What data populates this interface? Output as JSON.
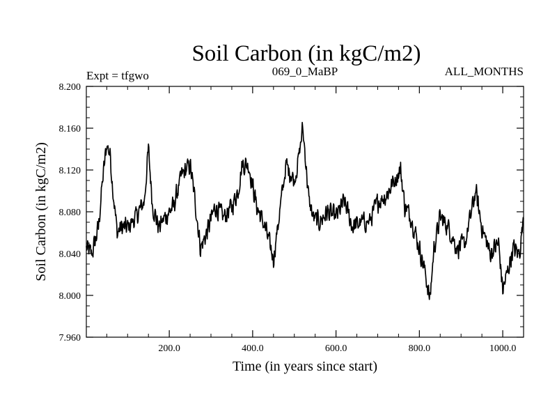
{
  "chart_data": {
    "type": "line",
    "title": "Soil Carbon (in kgC/m2)",
    "subtitle_left": "Expt = tfgwo",
    "subtitle_center": "069_0_MaBP",
    "subtitle_right": "ALL_MONTHS",
    "xlabel": "Time (in years since start)",
    "ylabel": "Soil Carbon (in kgC/m2)",
    "xlim": [
      1,
      1050
    ],
    "ylim": [
      7.96,
      8.2
    ],
    "x_ticks": [
      200,
      400,
      600,
      800,
      1000
    ],
    "x_tick_labels": [
      "200.0",
      "400.0",
      "600.0",
      "800.0",
      "1000.0"
    ],
    "x_minor_step": 50,
    "y_ticks": [
      7.96,
      8.0,
      8.04,
      8.08,
      8.12,
      8.16,
      8.2
    ],
    "y_tick_labels": [
      "7.960",
      "8.000",
      "8.040",
      "8.080",
      "8.120",
      "8.160",
      "8.200"
    ],
    "y_minor_step": 0.01,
    "grid": false,
    "series": [
      {
        "name": "Soil Carbon",
        "color": "#000000",
        "x": [
          1,
          15,
          30,
          40,
          50,
          58,
          65,
          75,
          85,
          100,
          120,
          140,
          150,
          160,
          175,
          190,
          210,
          230,
          250,
          262,
          275,
          290,
          310,
          330,
          350,
          365,
          375,
          390,
          410,
          430,
          450,
          465,
          480,
          500,
          510,
          520,
          525,
          535,
          545,
          560,
          580,
          600,
          620,
          640,
          660,
          680,
          700,
          720,
          740,
          755,
          765,
          780,
          800,
          815,
          825,
          835,
          850,
          870,
          890,
          910,
          925,
          935,
          950,
          970,
          990,
          1000,
          1010,
          1025,
          1040,
          1050
        ],
        "values": [
          8.045,
          8.04,
          8.065,
          8.11,
          8.145,
          8.135,
          8.1,
          8.06,
          8.065,
          8.065,
          8.075,
          8.09,
          8.14,
          8.085,
          8.065,
          8.075,
          8.085,
          8.115,
          8.125,
          8.09,
          8.045,
          8.06,
          8.085,
          8.075,
          8.085,
          8.1,
          8.125,
          8.125,
          8.085,
          8.065,
          8.035,
          8.08,
          8.125,
          8.11,
          8.13,
          8.16,
          8.14,
          8.09,
          8.075,
          8.07,
          8.08,
          8.075,
          8.09,
          8.065,
          8.07,
          8.07,
          8.09,
          8.095,
          8.11,
          8.12,
          8.085,
          8.075,
          8.045,
          8.02,
          7.995,
          8.045,
          8.075,
          8.065,
          8.045,
          8.05,
          8.08,
          8.1,
          8.065,
          8.04,
          8.05,
          8.005,
          8.02,
          8.045,
          8.04,
          8.075
        ],
        "noise_amplitude": 0.013
      }
    ]
  }
}
